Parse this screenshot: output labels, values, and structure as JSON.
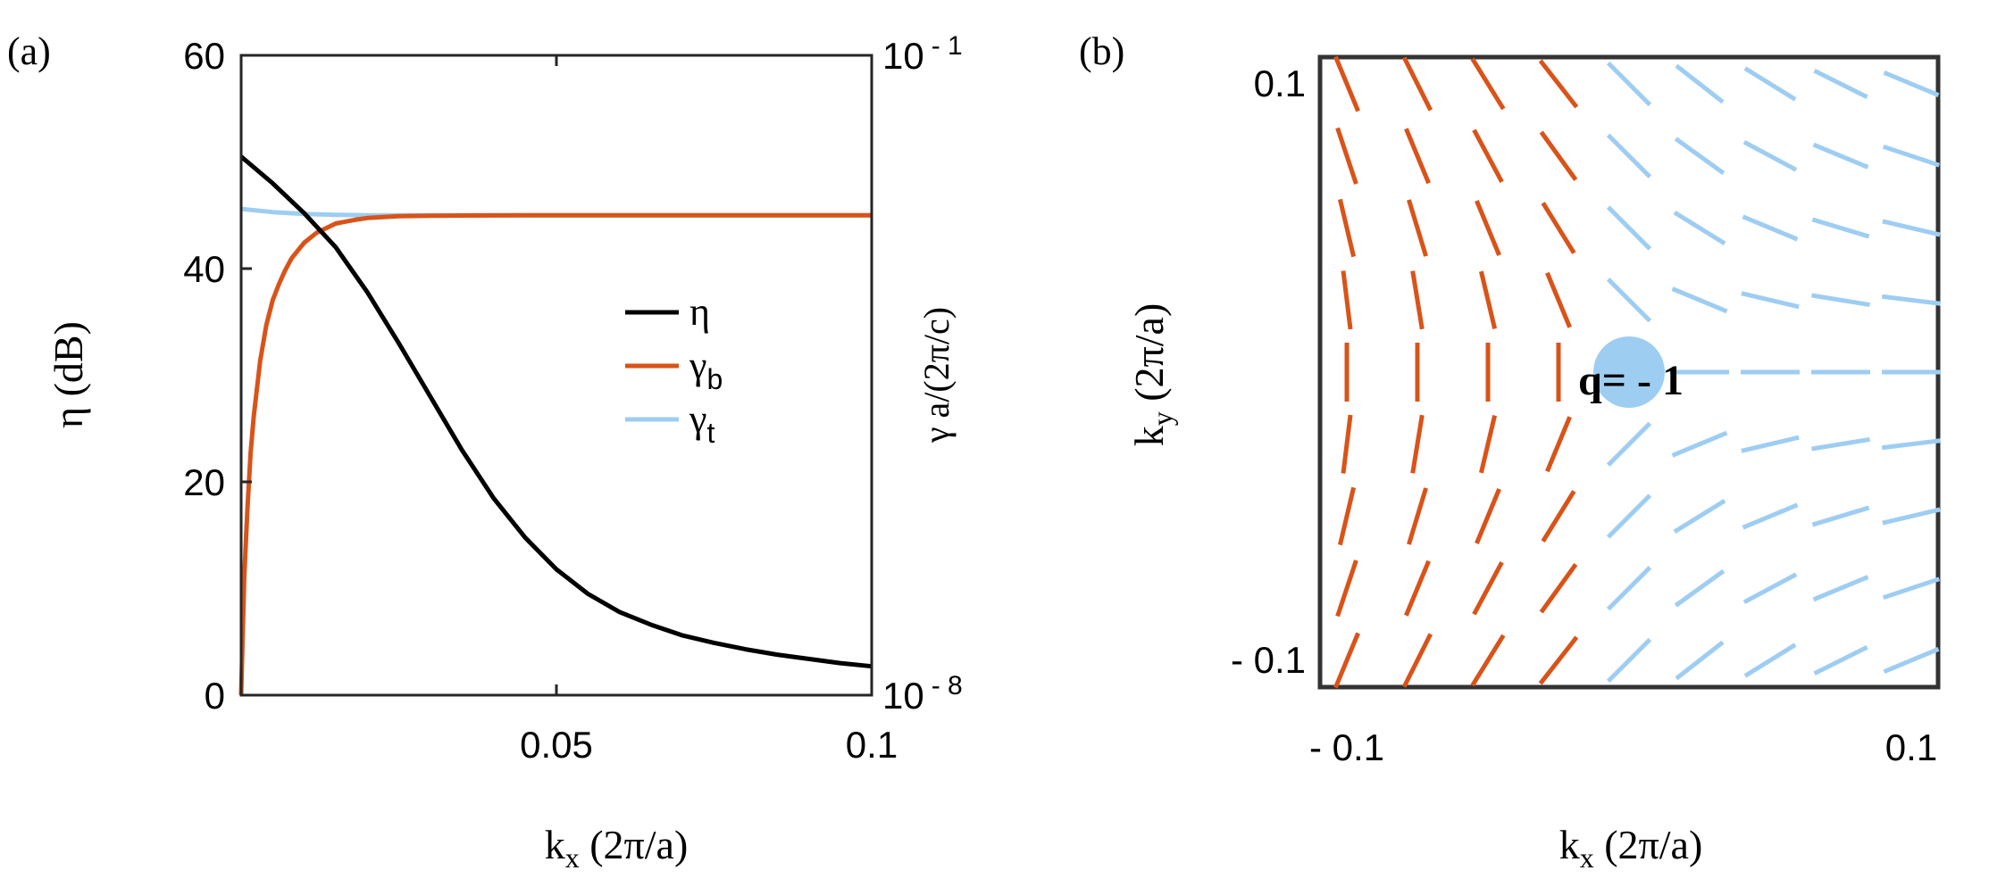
{
  "colors": {
    "eta": "#000000",
    "gamma_b": "#d95319",
    "gamma_t": "#9ecdf2",
    "axis": "#262626",
    "frame": "#333333"
  },
  "chart_data": [
    {
      "panel_label": "(a)",
      "type": "line",
      "xlabel": {
        "main": "k",
        "sub": "x",
        "rest": " (2π/a)"
      },
      "ylabel_left": "η (dB)",
      "ylabel_right": "γ a/(2π/c)",
      "xlim": [
        0.0,
        0.1
      ],
      "ylim_left": [
        0,
        60
      ],
      "ylim_right_log10": [
        -8,
        -1
      ],
      "x_ticks": [
        {
          "value": 0.05,
          "label": "0.05"
        },
        {
          "value": 0.1,
          "label": "0.1"
        }
      ],
      "y_ticks_left": [
        {
          "value": 0,
          "label": "0"
        },
        {
          "value": 20,
          "label": "20"
        },
        {
          "value": 40,
          "label": "40"
        },
        {
          "value": 60,
          "label": "60"
        }
      ],
      "y_ticks_right": [
        {
          "value": -1,
          "base": "10",
          "exp": "- 1"
        },
        {
          "value": -8,
          "base": "10",
          "exp": "- 8"
        }
      ],
      "legend": {
        "placement": "center-right",
        "entries": [
          {
            "key": "eta",
            "main": "η",
            "sub": ""
          },
          {
            "key": "gamma_b",
            "main": "γ",
            "sub": "b"
          },
          {
            "key": "gamma_t",
            "main": "γ",
            "sub": "t"
          }
        ]
      },
      "series": [
        {
          "key": "eta",
          "axis": "left",
          "x": [
            0.0,
            0.005,
            0.01,
            0.015,
            0.02,
            0.025,
            0.03,
            0.035,
            0.04,
            0.045,
            0.05,
            0.055,
            0.06,
            0.065,
            0.07,
            0.075,
            0.08,
            0.085,
            0.09,
            0.095,
            0.1
          ],
          "y": [
            50.5,
            48.0,
            45.2,
            42.0,
            37.8,
            33.0,
            28.0,
            23.0,
            18.5,
            14.8,
            11.8,
            9.5,
            7.8,
            6.6,
            5.6,
            4.9,
            4.3,
            3.8,
            3.4,
            3.0,
            2.7
          ]
        },
        {
          "key": "gamma_b",
          "axis": "right",
          "x": [
            0.0,
            0.0005,
            0.001,
            0.0015,
            0.002,
            0.003,
            0.004,
            0.005,
            0.006,
            0.007,
            0.008,
            0.01,
            0.012,
            0.015,
            0.018,
            0.02,
            0.025,
            0.03,
            0.035,
            0.04,
            0.045,
            0.05,
            0.06,
            0.07,
            0.08,
            0.09,
            0.1
          ],
          "y": [
            -8.0,
            -6.7,
            -5.95,
            -5.35,
            -4.95,
            -4.35,
            -3.95,
            -3.68,
            -3.5,
            -3.35,
            -3.22,
            -3.05,
            -2.94,
            -2.84,
            -2.8,
            -2.78,
            -2.76,
            -2.755,
            -2.752,
            -2.751,
            -2.75,
            -2.75,
            -2.75,
            -2.75,
            -2.75,
            -2.75,
            -2.75
          ]
        },
        {
          "key": "gamma_t",
          "axis": "right",
          "x": [
            0.0,
            0.005,
            0.01,
            0.015,
            0.02,
            0.03,
            0.04,
            0.05,
            0.06,
            0.07,
            0.08,
            0.09,
            0.1
          ],
          "y": [
            -2.68,
            -2.715,
            -2.735,
            -2.745,
            -2.75,
            -2.75,
            -2.75,
            -2.75,
            -2.75,
            -2.75,
            -2.75,
            -2.75,
            -2.75
          ]
        }
      ]
    },
    {
      "panel_label": "(b)",
      "type": "scatter",
      "xlabel": {
        "main": "k",
        "sub": "x",
        "rest": " (2π/a)"
      },
      "ylabel": {
        "main": "k",
        "sub": "y",
        "rest": " (2π/a)"
      },
      "xlim": [
        -0.1,
        0.1
      ],
      "ylim": [
        -0.1,
        0.1
      ],
      "x_ticks": [
        {
          "value": -0.1,
          "label": "- 0.1"
        },
        {
          "value": 0.1,
          "label": "0.1"
        }
      ],
      "y_ticks": [
        {
          "value": -0.1,
          "label": "- 0.1"
        },
        {
          "value": 0.1,
          "label": "0.1"
        }
      ],
      "annotation": "q= - 1",
      "singularity": [
        0,
        0
      ],
      "field": {
        "description_free": true,
        "grid": [
          -0.1,
          -0.075,
          -0.05,
          -0.025,
          0,
          0.025,
          0.05,
          0.075,
          0.1
        ],
        "winding_charge": -1
      }
    }
  ]
}
